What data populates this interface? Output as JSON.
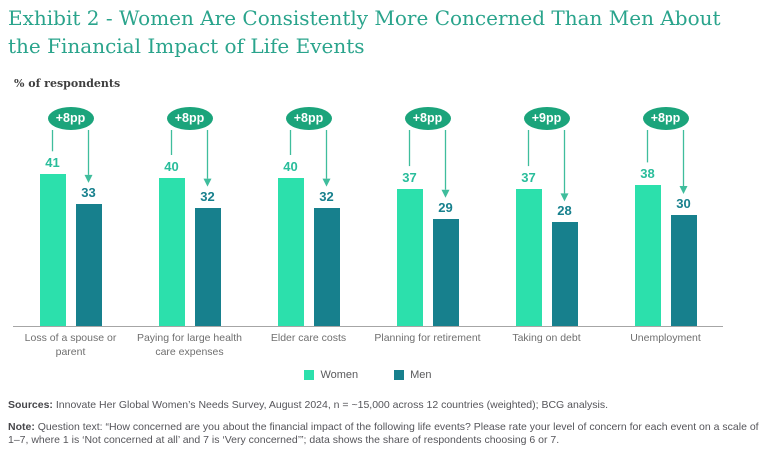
{
  "header": {
    "title_line1": "Exhibit 2 - Women Are Consistently More Concerned Than Men About",
    "title_line2": "the Financial Impact of Life Events",
    "unit_label": "% of respondents"
  },
  "chart_data": {
    "type": "bar",
    "title": "Exhibit 2 - Women Are Consistently More Concerned Than Men About the Financial Impact of Life Events",
    "ylabel": "% of respondents",
    "ylim": [
      0,
      45
    ],
    "grid": false,
    "legend_position": "bottom",
    "categories": [
      "Loss of a spouse or parent",
      "Paying for large health care expenses",
      "Elder care costs",
      "Planning for retirement",
      "Taking on debt",
      "Unemployment"
    ],
    "series": [
      {
        "name": "Women",
        "values": [
          41,
          40,
          40,
          37,
          37,
          38
        ],
        "color": "#2CE0AC",
        "label_color": "#29BD9B"
      },
      {
        "name": "Men",
        "values": [
          33,
          32,
          32,
          29,
          28,
          30
        ],
        "color": "#17808D",
        "label_color": "#17808D"
      }
    ],
    "deltas": [
      "+8pp",
      "+8pp",
      "+8pp",
      "+8pp",
      "+9pp",
      "+8pp"
    ],
    "delta_badge_color": "#1BA47B",
    "connector_color": "#3FBD9C",
    "axis_line_color": "#A6A6A6"
  },
  "legend": {
    "items": [
      {
        "label": "Women"
      },
      {
        "label": "Men"
      }
    ]
  },
  "footer": {
    "sources_label": "Sources:",
    "sources_text": " Innovate Her Global Women’s Needs Survey, August 2024, n = ~15,000 across 12 countries (weighted); BCG analysis.",
    "note_label": "Note:",
    "note_text": " Question text: “How concerned are you about the financial impact of the following life events? Please rate your level of concern for each event on a scale of 1–7, where 1 is ‘Not concerned at all’ and 7 is ‘Very concerned’”; data shows the share of respondents choosing 6 or 7."
  }
}
